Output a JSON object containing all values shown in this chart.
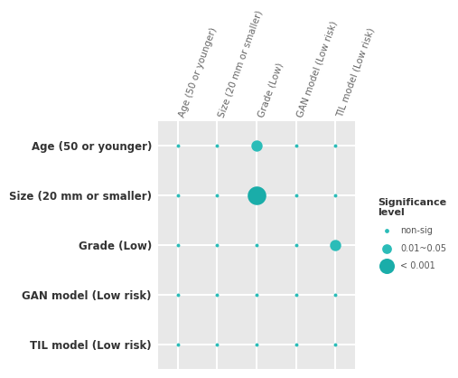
{
  "labels": [
    "Age (50 or younger)",
    "Size (20 mm or smaller)",
    "Grade (Low)",
    "GAN model (Low risk)",
    "TIL model (Low risk)"
  ],
  "col_labels": [
    "Age (50 or younger)",
    "Size (20 mm or smaller)",
    "Grade (Low)",
    "GAN model (Low risk)",
    "TIL model (Low risk)"
  ],
  "background_color": "#e8e8e8",
  "outer_bg": "#ffffff",
  "grid_color": "#ffffff",
  "dot_data": [
    {
      "row": 0,
      "col": 0,
      "sig": "non-sig"
    },
    {
      "row": 0,
      "col": 1,
      "sig": "non-sig"
    },
    {
      "row": 0,
      "col": 2,
      "sig": "0.01-0.05"
    },
    {
      "row": 0,
      "col": 3,
      "sig": "non-sig"
    },
    {
      "row": 0,
      "col": 4,
      "sig": "non-sig"
    },
    {
      "row": 1,
      "col": 0,
      "sig": "non-sig"
    },
    {
      "row": 1,
      "col": 1,
      "sig": "non-sig"
    },
    {
      "row": 1,
      "col": 2,
      "sig": "<0.001"
    },
    {
      "row": 1,
      "col": 3,
      "sig": "non-sig"
    },
    {
      "row": 1,
      "col": 4,
      "sig": "non-sig"
    },
    {
      "row": 2,
      "col": 0,
      "sig": "non-sig"
    },
    {
      "row": 2,
      "col": 1,
      "sig": "non-sig"
    },
    {
      "row": 2,
      "col": 2,
      "sig": "non-sig"
    },
    {
      "row": 2,
      "col": 3,
      "sig": "non-sig"
    },
    {
      "row": 2,
      "col": 4,
      "sig": "0.01-0.05"
    },
    {
      "row": 3,
      "col": 0,
      "sig": "non-sig"
    },
    {
      "row": 3,
      "col": 1,
      "sig": "non-sig"
    },
    {
      "row": 3,
      "col": 2,
      "sig": "non-sig"
    },
    {
      "row": 3,
      "col": 3,
      "sig": "non-sig"
    },
    {
      "row": 3,
      "col": 4,
      "sig": "non-sig"
    },
    {
      "row": 4,
      "col": 0,
      "sig": "non-sig"
    },
    {
      "row": 4,
      "col": 1,
      "sig": "non-sig"
    },
    {
      "row": 4,
      "col": 2,
      "sig": "non-sig"
    },
    {
      "row": 4,
      "col": 3,
      "sig": "non-sig"
    },
    {
      "row": 4,
      "col": 4,
      "sig": "non-sig"
    }
  ],
  "sig_sizes": {
    "non-sig": 8,
    "0.01-0.05": 80,
    "<0.001": 220
  },
  "sig_colors": {
    "non-sig": "#2bbcb8",
    "0.01-0.05": "#2bbcb8",
    "<0.001": "#1aada9"
  },
  "legend_sig_sizes": {
    "non-sig": 12,
    "0.01-0.05": 60,
    "<0.001": 150
  },
  "legend_labels": [
    "non-sig",
    "0.01~0.05",
    "< 0.001"
  ],
  "legend_sigs": [
    "non-sig",
    "0.01-0.05",
    "<0.001"
  ],
  "title": "Significance\nlevel",
  "row_label_fontsize": 8.5,
  "col_label_fontsize": 7.5,
  "row_label_color": "#333333",
  "col_label_color": "#666666"
}
